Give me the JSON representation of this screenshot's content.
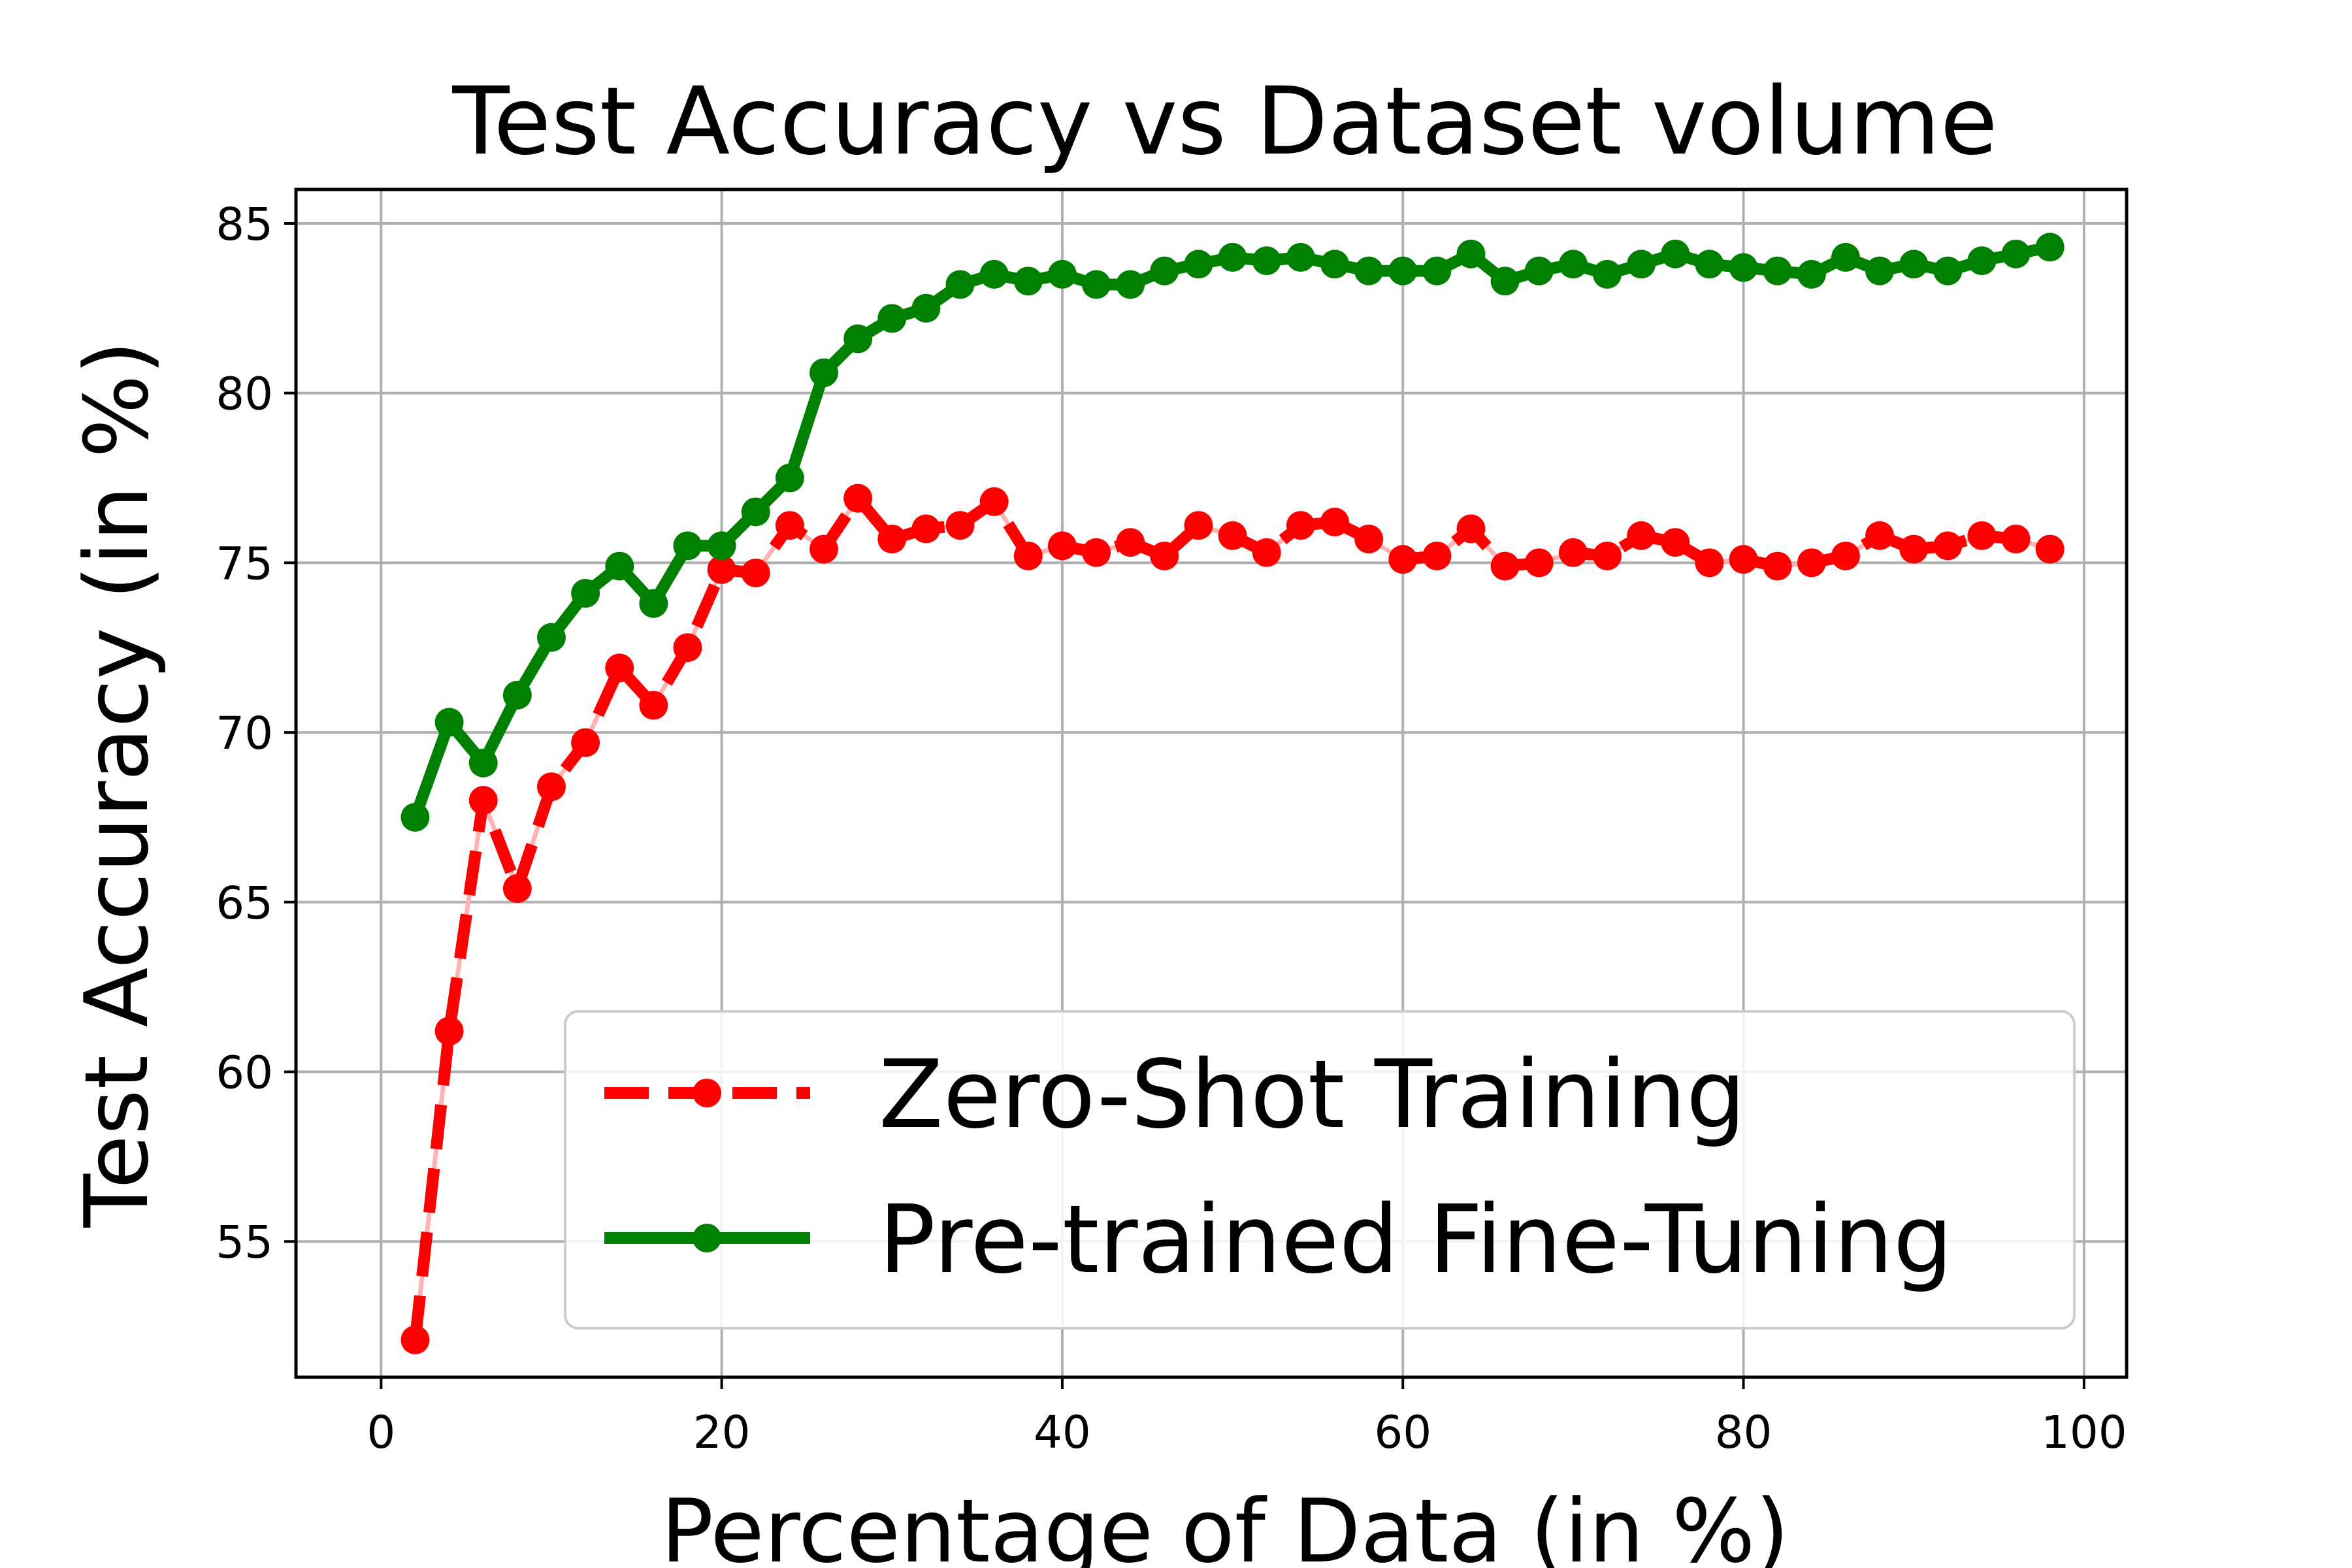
{
  "chart_data": {
    "type": "line",
    "title": "Test Accuracy vs Dataset volume",
    "xlabel": "Percentage of Data (in %)",
    "ylabel": "Test Accuracy (in %)",
    "xlim": [
      -5,
      102.5
    ],
    "ylim": [
      51.0,
      86.0
    ],
    "xticks": [
      0,
      20,
      40,
      60,
      80,
      100
    ],
    "yticks": [
      55,
      60,
      65,
      70,
      75,
      80,
      85
    ],
    "grid": true,
    "legend_position": "lower-right",
    "x": [
      2,
      4,
      6,
      8,
      10,
      12,
      14,
      16,
      18,
      20,
      22,
      24,
      26,
      28,
      30,
      32,
      34,
      36,
      38,
      40,
      42,
      44,
      46,
      48,
      50,
      52,
      54,
      56,
      58,
      60,
      62,
      64,
      66,
      68,
      70,
      72,
      74,
      76,
      78,
      80,
      82,
      84,
      86,
      88,
      90,
      92,
      94,
      96,
      98
    ],
    "series": [
      {
        "name": "Zero-Shot Training",
        "color": "#ff0000",
        "style": "dashed",
        "values": [
          52.1,
          61.2,
          68.0,
          65.4,
          68.4,
          69.7,
          71.9,
          70.8,
          72.5,
          74.8,
          74.7,
          76.1,
          75.4,
          76.9,
          75.7,
          76.0,
          76.1,
          76.8,
          75.2,
          75.5,
          75.3,
          75.6,
          75.2,
          76.1,
          75.8,
          75.3,
          76.1,
          76.2,
          75.7,
          75.1,
          75.2,
          76.0,
          74.9,
          75.0,
          75.3,
          75.2,
          75.8,
          75.6,
          75.0,
          75.1,
          74.9,
          75.0,
          75.2,
          75.8,
          75.4,
          75.5,
          75.8,
          75.7,
          75.4
        ]
      },
      {
        "name": "Pre-trained Fine-Tuning",
        "color": "#008000",
        "style": "solid",
        "values": [
          67.5,
          70.3,
          69.1,
          71.1,
          72.8,
          74.1,
          74.9,
          73.8,
          75.5,
          75.5,
          76.5,
          77.5,
          80.6,
          81.6,
          82.2,
          82.5,
          83.2,
          83.5,
          83.3,
          83.5,
          83.2,
          83.2,
          83.6,
          83.8,
          84.0,
          83.9,
          84.0,
          83.8,
          83.6,
          83.6,
          83.6,
          84.1,
          83.3,
          83.6,
          83.8,
          83.5,
          83.8,
          84.1,
          83.8,
          83.7,
          83.6,
          83.5,
          84.0,
          83.6,
          83.8,
          83.6,
          83.9,
          84.1,
          84.3
        ]
      }
    ]
  }
}
